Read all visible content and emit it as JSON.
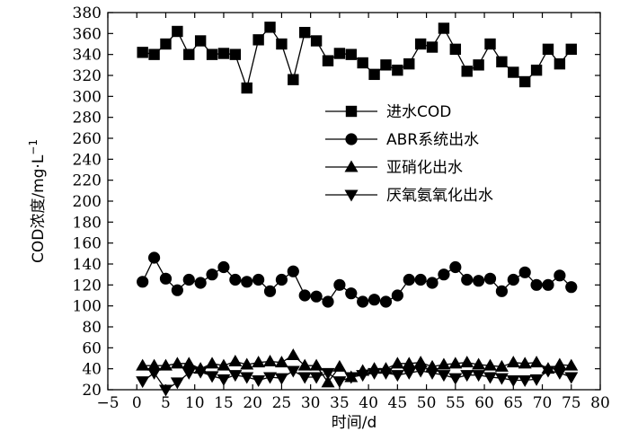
{
  "chart_data": {
    "type": "line",
    "xlabel": "时间/d",
    "ylabel": "COD浓度/mg·L",
    "ylabel_superscript": "−1",
    "xlim": [
      -5,
      80
    ],
    "ylim": [
      20,
      380
    ],
    "xticks": [
      -5,
      0,
      5,
      10,
      15,
      20,
      25,
      30,
      35,
      40,
      45,
      50,
      55,
      60,
      65,
      70,
      75,
      80
    ],
    "xtick_labels": [
      "−5",
      "0",
      "5",
      "10",
      "15",
      "20",
      "25",
      "30",
      "35",
      "40",
      "45",
      "50",
      "55",
      "60",
      "65",
      "70",
      "75",
      "80"
    ],
    "yticks": [
      20,
      40,
      60,
      80,
      100,
      120,
      140,
      160,
      180,
      200,
      220,
      240,
      260,
      280,
      300,
      320,
      340,
      360,
      380
    ],
    "ytick_labels": [
      "20",
      "40",
      "60",
      "80",
      "100",
      "120",
      "140",
      "160",
      "180",
      "200",
      "220",
      "240",
      "260",
      "280",
      "300",
      "320",
      "340",
      "360",
      "380"
    ],
    "legend_position": "upper-right",
    "x": [
      1,
      3,
      5,
      7,
      9,
      11,
      13,
      15,
      17,
      19,
      21,
      23,
      25,
      27,
      29,
      31,
      33,
      35,
      37,
      39,
      41,
      43,
      45,
      47,
      49,
      51,
      53,
      55,
      57,
      59,
      61,
      63,
      65,
      67,
      69,
      71,
      73,
      75
    ],
    "series": [
      {
        "name": "进水COD",
        "marker": "square",
        "values": [
          342,
          340,
          350,
          362,
          340,
          353,
          340,
          341,
          340,
          308,
          354,
          366,
          350,
          316,
          361,
          353,
          334,
          341,
          340,
          332,
          321,
          330,
          325,
          331,
          350,
          347,
          365,
          345,
          324,
          330,
          350,
          333,
          323,
          314,
          325,
          345,
          331,
          345
        ]
      },
      {
        "name": "ABR系统出水",
        "marker": "circle",
        "values": [
          123,
          146,
          126,
          115,
          125,
          122,
          130,
          137,
          125,
          123,
          125,
          114,
          125,
          133,
          110,
          109,
          104,
          120,
          112,
          104,
          106,
          104,
          110,
          125,
          125,
          122,
          130,
          137,
          125,
          124,
          126,
          114,
          125,
          132,
          120,
          120,
          129,
          118
        ]
      },
      {
        "name": "亚硝化出水",
        "marker": "triangle-up",
        "values": [
          43,
          43,
          43,
          45,
          45,
          40,
          45,
          43,
          47,
          44,
          46,
          47,
          46,
          53,
          43,
          43,
          27,
          42,
          32,
          38,
          40,
          40,
          45,
          45,
          46,
          42,
          44,
          45,
          46,
          44,
          43,
          42,
          46,
          45,
          46,
          40,
          44,
          43
        ]
      },
      {
        "name": "厌氧氨氧化出水",
        "marker": "triangle-down",
        "values": [
          28,
          36,
          20,
          27,
          36,
          37,
          33,
          30,
          34,
          32,
          29,
          32,
          31,
          38,
          32,
          32,
          36,
          28,
          32,
          34,
          36,
          36,
          34,
          36,
          38,
          36,
          34,
          31,
          34,
          34,
          32,
          31,
          29,
          29,
          30,
          38,
          36,
          32
        ]
      }
    ]
  }
}
